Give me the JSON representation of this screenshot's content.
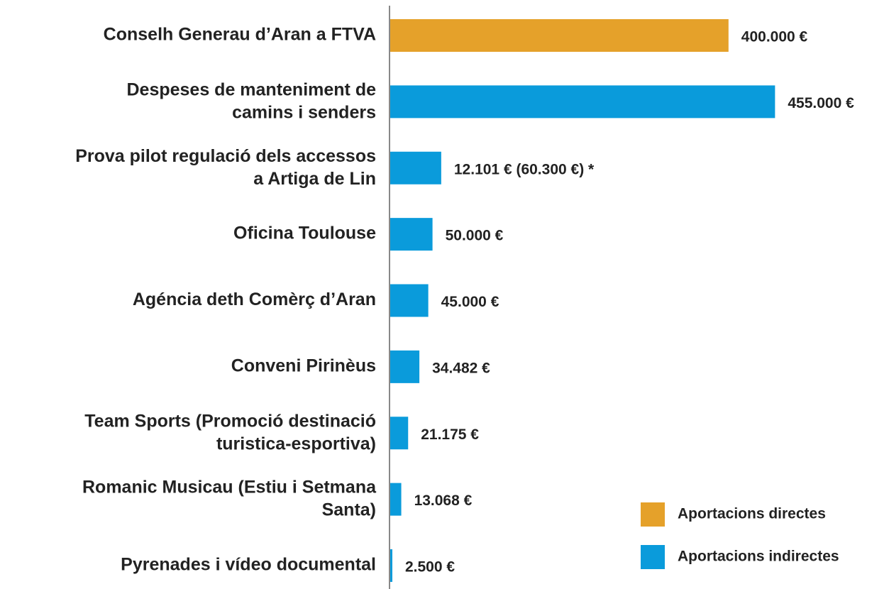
{
  "chart_data": {
    "type": "barh",
    "categories": [
      "Conselh Generau d’Aran a FTVA",
      "Despeses de manteniment de\ncamins i senders",
      "Prova pilot regulació dels accessos\na Artiga de Lin",
      "Oficina Toulouse",
      "Agéncia deth Comèrç d’Aran",
      "Conveni  Pirinèus",
      "Team Sports (Promoció destinació\nturistica-esportiva)",
      "Romanic Musicau (Estiu i Setmana\nSanta)",
      "Pyrenades i vídeo documental"
    ],
    "series": [
      {
        "name": "Aportacions directes",
        "color": "#e5a12a",
        "values": [
          400000,
          null,
          null,
          null,
          null,
          null,
          null,
          null,
          null
        ],
        "value_labels": [
          "400.000 €",
          null,
          null,
          null,
          null,
          null,
          null,
          null,
          null
        ]
      },
      {
        "name": "Aportacions indirectes",
        "color": "#0a9bdb",
        "values": [
          null,
          455000,
          60300,
          50000,
          45000,
          34482,
          21175,
          13068,
          2500
        ],
        "value_labels": [
          null,
          "455.000 €",
          "12.101 € (60.300 €) *",
          "50.000 €",
          "45.000 €",
          "34.482 €",
          "21.175 €",
          "13.068 €",
          "2.500 €"
        ]
      }
    ],
    "xlim": [
      0,
      500000
    ]
  }
}
